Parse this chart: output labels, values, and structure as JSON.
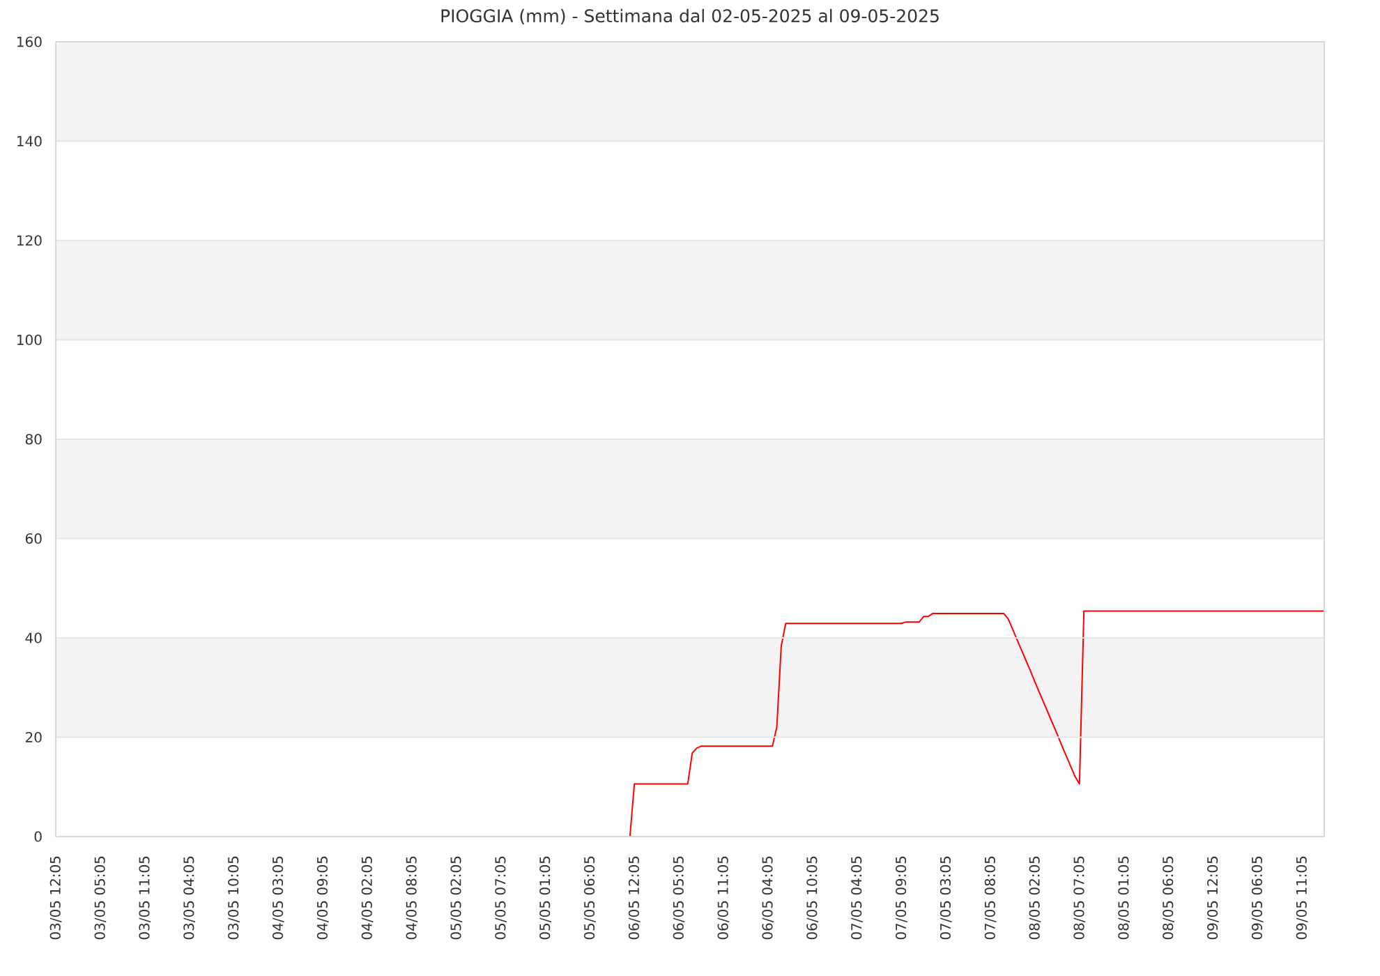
{
  "chart_data": {
    "type": "line",
    "title": "PIOGGIA (mm) - Settimana dal 02-05-2025 al 09-05-2025",
    "categories": [
      "03/05 12:05",
      null,
      null,
      null,
      null,
      null,
      null,
      null,
      null,
      null,
      "03/05 05:05",
      null,
      null,
      null,
      null,
      null,
      null,
      null,
      null,
      null,
      "03/05 11:05",
      null,
      null,
      null,
      null,
      null,
      null,
      null,
      null,
      null,
      "03/05 04:05",
      null,
      null,
      null,
      null,
      null,
      null,
      null,
      null,
      null,
      "03/05 10:05",
      null,
      null,
      null,
      null,
      null,
      null,
      null,
      null,
      null,
      "04/05 03:05",
      null,
      null,
      null,
      null,
      null,
      null,
      null,
      null,
      null,
      "04/05 09:05",
      null,
      null,
      null,
      null,
      null,
      null,
      null,
      null,
      null,
      "04/05 02:05",
      null,
      null,
      null,
      null,
      null,
      null,
      null,
      null,
      null,
      "04/05 08:05",
      null,
      null,
      null,
      null,
      null,
      null,
      null,
      null,
      null,
      "05/05 02:05",
      null,
      null,
      null,
      null,
      null,
      null,
      null,
      null,
      null,
      "05/05 07:05",
      null,
      null,
      null,
      null,
      null,
      null,
      null,
      null,
      null,
      "05/05 01:05",
      null,
      null,
      null,
      null,
      null,
      null,
      null,
      null,
      null,
      "05/05 06:05",
      null,
      null,
      null,
      null,
      null,
      null,
      null,
      null,
      null,
      "06/05 12:05",
      null,
      null,
      null,
      null,
      null,
      null,
      null,
      null,
      null,
      "06/05 05:05",
      null,
      null,
      null,
      null,
      null,
      null,
      null,
      null,
      null,
      "06/05 11:05",
      null,
      null,
      null,
      null,
      null,
      null,
      null,
      null,
      null,
      "06/05 04:05",
      null,
      null,
      null,
      null,
      null,
      null,
      null,
      null,
      null,
      "06/05 10:05",
      null,
      null,
      null,
      null,
      null,
      null,
      null,
      null,
      null,
      "07/05 04:05",
      null,
      null,
      null,
      null,
      null,
      null,
      null,
      null,
      null,
      "07/05 09:05",
      null,
      null,
      null,
      null,
      null,
      null,
      null,
      null,
      null,
      "07/05 03:05",
      null,
      null,
      null,
      null,
      null,
      null,
      null,
      null,
      null,
      "07/05 08:05",
      null,
      null,
      null,
      null,
      null,
      null,
      null,
      null,
      null,
      "08/05 02:05",
      null,
      null,
      null,
      null,
      null,
      null,
      null,
      null,
      null,
      "08/05 07:05",
      null,
      null,
      null,
      null,
      null,
      null,
      null,
      null,
      null,
      "08/05 01:05",
      null,
      null,
      null,
      null,
      null,
      null,
      null,
      null,
      null,
      "08/05 06:05",
      null,
      null,
      null,
      null,
      null,
      null,
      null,
      null,
      null,
      "09/05 12:05",
      null,
      null,
      null,
      null,
      null,
      null,
      null,
      null,
      null,
      "09/05 06:05",
      null,
      null,
      null,
      null,
      null,
      null,
      null,
      null,
      null,
      "09/05 11:05",
      null,
      null,
      null,
      null,
      null
    ],
    "values": [
      null,
      null,
      null,
      null,
      null,
      null,
      null,
      null,
      null,
      null,
      null,
      null,
      null,
      null,
      null,
      null,
      null,
      null,
      null,
      null,
      null,
      null,
      null,
      null,
      null,
      null,
      null,
      null,
      null,
      null,
      null,
      null,
      null,
      null,
      null,
      null,
      null,
      null,
      null,
      null,
      null,
      null,
      null,
      null,
      null,
      null,
      null,
      null,
      null,
      null,
      null,
      null,
      null,
      null,
      null,
      null,
      null,
      null,
      null,
      null,
      null,
      null,
      null,
      null,
      null,
      null,
      null,
      null,
      null,
      null,
      null,
      null,
      null,
      null,
      null,
      null,
      null,
      null,
      null,
      null,
      null,
      null,
      null,
      null,
      null,
      null,
      null,
      null,
      null,
      null,
      null,
      null,
      null,
      null,
      null,
      null,
      null,
      null,
      null,
      null,
      null,
      null,
      null,
      null,
      null,
      null,
      null,
      null,
      null,
      null,
      null,
      null,
      null,
      null,
      null,
      null,
      null,
      null,
      null,
      null,
      null,
      null,
      null,
      null,
      null,
      null,
      null,
      null,
      null,
      0,
      10.6,
      10.6,
      10.6,
      10.6,
      10.6,
      10.6,
      10.6,
      10.6,
      10.6,
      10.6,
      10.6,
      10.6,
      10.6,
      16.8,
      17.8,
      18.2,
      18.2,
      18.2,
      18.2,
      18.2,
      18.2,
      18.2,
      18.2,
      18.2,
      18.2,
      18.2,
      18.2,
      18.2,
      18.2,
      18.2,
      18.2,
      18.2,
      22,
      38.4,
      42.9,
      42.9,
      42.9,
      42.9,
      42.9,
      42.9,
      42.9,
      42.9,
      42.9,
      42.9,
      42.9,
      42.9,
      42.9,
      42.9,
      42.9,
      42.9,
      42.9,
      42.9,
      42.9,
      42.9,
      42.9,
      42.9,
      42.9,
      42.9,
      42.9,
      42.9,
      42.9,
      43.2,
      43.2,
      43.2,
      43.2,
      44.3,
      44.3,
      44.9,
      44.9,
      44.9,
      44.9,
      44.9,
      44.9,
      44.9,
      44.9,
      44.9,
      44.9,
      44.9,
      44.9,
      44.9,
      44.9,
      44.9,
      44.9,
      44.9,
      43.8,
      41.7,
      39.6,
      37.5,
      35.4,
      33.3,
      31.1,
      29.0,
      26.9,
      24.8,
      22.7,
      20.6,
      18.4,
      16.3,
      14.2,
      12.1,
      10.6,
      45.4,
      45.4,
      45.4,
      45.4,
      45.4,
      45.4,
      45.4,
      45.4,
      45.4,
      45.4,
      45.4,
      45.4,
      45.4,
      45.4,
      45.4,
      45.4,
      45.4,
      45.4,
      45.4,
      45.4,
      45.4,
      45.4,
      45.4,
      45.4,
      45.4,
      45.4,
      45.4,
      45.4,
      45.4,
      45.4,
      45.4,
      45.4,
      45.4,
      45.4,
      45.4,
      45.4,
      45.4,
      45.4,
      45.4,
      45.4,
      45.4,
      45.4,
      45.4,
      45.4,
      45.4,
      45.4,
      45.4,
      45.4,
      45.4,
      45.4,
      45.4,
      45.4,
      45.4,
      45.4,
      45.4
    ],
    "color": "#ff0000",
    "ylim": [
      0,
      160
    ],
    "yticks": [
      0,
      20,
      40,
      60,
      80,
      100,
      120,
      140,
      160
    ],
    "grid": "y",
    "bands": [
      {
        "axis": "y",
        "from": 20,
        "to": 40,
        "color": "#f3f3f3"
      },
      {
        "axis": "y",
        "from": 60,
        "to": 80,
        "color": "#f3f3f3"
      },
      {
        "axis": "y",
        "from": 100,
        "to": 120,
        "color": "#f3f3f3"
      },
      {
        "axis": "y",
        "from": 140,
        "to": 160,
        "color": "#f3f3f3"
      }
    ]
  }
}
